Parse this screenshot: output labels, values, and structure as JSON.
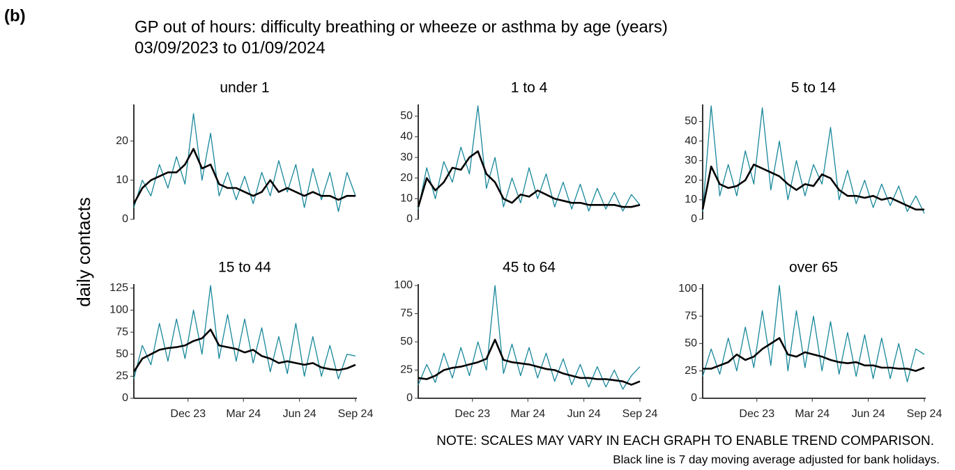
{
  "label": "(b)",
  "title": "GP out of hours: difficulty breathing or wheeze or asthma by age (years)",
  "subtitle": "03/09/2023 to 01/09/2024",
  "y_label": "daily contacts",
  "notes": [
    "NOTE: SCALES MAY VARY IN EACH GRAPH TO ENABLE TREND COMPARISON.",
    "Black line is 7 day moving average adjusted for bank holidays."
  ],
  "chart_data": [
    {
      "type": "line",
      "title": "under 1",
      "x": [
        "2023-09-03",
        "2023-09-17",
        "2023-10-01",
        "2023-10-15",
        "2023-10-29",
        "2023-11-12",
        "2023-11-26",
        "2023-12-10",
        "2023-12-24",
        "2024-01-07",
        "2024-01-21",
        "2024-02-04",
        "2024-02-18",
        "2024-03-03",
        "2024-03-17",
        "2024-03-31",
        "2024-04-14",
        "2024-04-28",
        "2024-05-12",
        "2024-05-26",
        "2024-06-09",
        "2024-06-23",
        "2024-07-07",
        "2024-07-21",
        "2024-08-04",
        "2024-08-18",
        "2024-09-01"
      ],
      "xlim": [
        "2023-09-03",
        "2024-09-01"
      ],
      "ylim": [
        0,
        29
      ],
      "yticks": [
        0,
        10,
        20
      ],
      "series": [
        {
          "color": "#17879a",
          "values": [
            3,
            10,
            6,
            14,
            8,
            16,
            9,
            27,
            10,
            22,
            6,
            12,
            5,
            11,
            4,
            12,
            6,
            15,
            7,
            14,
            3,
            13,
            5,
            12,
            2,
            12,
            6
          ]
        },
        {
          "color": "#000000",
          "values": [
            4,
            8,
            10,
            11,
            12,
            12,
            14,
            18,
            13,
            14,
            9,
            8,
            8,
            7,
            6,
            7,
            10,
            7,
            8,
            7,
            6,
            7,
            6,
            6,
            5,
            6,
            6
          ]
        }
      ]
    },
    {
      "type": "line",
      "title": "1 to 4",
      "x": [
        "2023-09-03",
        "2023-09-17",
        "2023-10-01",
        "2023-10-15",
        "2023-10-29",
        "2023-11-12",
        "2023-11-26",
        "2023-12-10",
        "2023-12-24",
        "2024-01-07",
        "2024-01-21",
        "2024-02-04",
        "2024-02-18",
        "2024-03-03",
        "2024-03-17",
        "2024-03-31",
        "2024-04-14",
        "2024-04-28",
        "2024-05-12",
        "2024-05-26",
        "2024-06-09",
        "2024-06-23",
        "2024-07-07",
        "2024-07-21",
        "2024-08-04",
        "2024-08-18",
        "2024-09-01"
      ],
      "xlim": [
        "2023-09-03",
        "2024-09-01"
      ],
      "ylim": [
        0,
        55
      ],
      "yticks": [
        0,
        10,
        20,
        30,
        40,
        50
      ],
      "series": [
        {
          "color": "#17879a",
          "values": [
            5,
            25,
            10,
            28,
            18,
            35,
            22,
            55,
            15,
            30,
            6,
            20,
            8,
            25,
            10,
            22,
            6,
            18,
            5,
            17,
            4,
            15,
            5,
            13,
            4,
            12,
            7
          ]
        },
        {
          "color": "#000000",
          "values": [
            6,
            20,
            14,
            18,
            25,
            24,
            30,
            33,
            22,
            18,
            10,
            8,
            12,
            11,
            14,
            12,
            10,
            9,
            8,
            8,
            7,
            7,
            7,
            7,
            6,
            6,
            7
          ]
        }
      ]
    },
    {
      "type": "line",
      "title": "5 to 14",
      "x": [
        "2023-09-03",
        "2023-09-17",
        "2023-10-01",
        "2023-10-15",
        "2023-10-29",
        "2023-11-12",
        "2023-11-26",
        "2023-12-10",
        "2023-12-24",
        "2024-01-07",
        "2024-01-21",
        "2024-02-04",
        "2024-02-18",
        "2024-03-03",
        "2024-03-17",
        "2024-03-31",
        "2024-04-14",
        "2024-04-28",
        "2024-05-12",
        "2024-05-26",
        "2024-06-09",
        "2024-06-23",
        "2024-07-07",
        "2024-07-21",
        "2024-08-04",
        "2024-08-18",
        "2024-09-01"
      ],
      "xlim": [
        "2023-09-03",
        "2024-09-01"
      ],
      "ylim": [
        0,
        58
      ],
      "yticks": [
        0,
        10,
        20,
        30,
        40,
        50
      ],
      "series": [
        {
          "color": "#17879a",
          "values": [
            4,
            58,
            12,
            28,
            12,
            35,
            18,
            57,
            15,
            40,
            10,
            30,
            12,
            28,
            18,
            47,
            10,
            25,
            8,
            20,
            6,
            18,
            7,
            17,
            4,
            12,
            3
          ]
        },
        {
          "color": "#000000",
          "values": [
            5,
            27,
            18,
            16,
            17,
            20,
            28,
            26,
            24,
            22,
            18,
            15,
            18,
            17,
            23,
            21,
            15,
            12,
            12,
            11,
            12,
            10,
            11,
            9,
            7,
            5,
            5
          ]
        }
      ]
    },
    {
      "type": "line",
      "title": "15 to 44",
      "x": [
        "2023-09-03",
        "2023-09-17",
        "2023-10-01",
        "2023-10-15",
        "2023-10-29",
        "2023-11-12",
        "2023-11-26",
        "2023-12-10",
        "2023-12-24",
        "2024-01-07",
        "2024-01-21",
        "2024-02-04",
        "2024-02-18",
        "2024-03-03",
        "2024-03-17",
        "2024-03-31",
        "2024-04-14",
        "2024-04-28",
        "2024-05-12",
        "2024-05-26",
        "2024-06-09",
        "2024-06-23",
        "2024-07-07",
        "2024-07-21",
        "2024-08-04",
        "2024-08-18",
        "2024-09-01"
      ],
      "xlim": [
        "2023-09-03",
        "2024-09-01"
      ],
      "xticks": [
        {
          "value": "2023-12-01",
          "label": "Dec 23"
        },
        {
          "value": "2024-03-01",
          "label": "Mar 24"
        },
        {
          "value": "2024-06-01",
          "label": "Jun 24"
        },
        {
          "value": "2024-09-01",
          "label": "Sep 24"
        }
      ],
      "ylim": [
        0,
        128
      ],
      "yticks": [
        0,
        25,
        50,
        75,
        100,
        125
      ],
      "series": [
        {
          "color": "#17879a",
          "values": [
            22,
            60,
            38,
            85,
            42,
            90,
            45,
            100,
            50,
            128,
            45,
            95,
            42,
            90,
            40,
            80,
            30,
            70,
            28,
            85,
            25,
            70,
            25,
            60,
            22,
            50,
            48
          ]
        },
        {
          "color": "#000000",
          "values": [
            30,
            45,
            50,
            55,
            57,
            58,
            60,
            65,
            68,
            78,
            60,
            58,
            56,
            52,
            55,
            48,
            45,
            40,
            42,
            40,
            38,
            40,
            35,
            33,
            32,
            34,
            38
          ]
        }
      ]
    },
    {
      "type": "line",
      "title": "45 to 64",
      "x": [
        "2023-09-03",
        "2023-09-17",
        "2023-10-01",
        "2023-10-15",
        "2023-10-29",
        "2023-11-12",
        "2023-11-26",
        "2023-12-10",
        "2023-12-24",
        "2024-01-07",
        "2024-01-21",
        "2024-02-04",
        "2024-02-18",
        "2024-03-03",
        "2024-03-17",
        "2024-03-31",
        "2024-04-14",
        "2024-04-28",
        "2024-05-12",
        "2024-05-26",
        "2024-06-09",
        "2024-06-23",
        "2024-07-07",
        "2024-07-21",
        "2024-08-04",
        "2024-08-18",
        "2024-09-01"
      ],
      "xlim": [
        "2023-09-03",
        "2024-09-01"
      ],
      "xticks": [
        {
          "value": "2023-12-01",
          "label": "Dec 23"
        },
        {
          "value": "2024-03-01",
          "label": "Mar 24"
        },
        {
          "value": "2024-06-01",
          "label": "Jun 24"
        },
        {
          "value": "2024-09-01",
          "label": "Sep 24"
        }
      ],
      "ylim": [
        0,
        100
      ],
      "yticks": [
        0,
        25,
        50,
        75,
        100
      ],
      "series": [
        {
          "color": "#17879a",
          "values": [
            12,
            30,
            14,
            40,
            18,
            45,
            20,
            50,
            25,
            100,
            22,
            48,
            20,
            45,
            18,
            40,
            15,
            35,
            12,
            30,
            10,
            28,
            10,
            25,
            8,
            20,
            28
          ]
        },
        {
          "color": "#000000",
          "values": [
            18,
            17,
            20,
            25,
            27,
            28,
            30,
            32,
            35,
            52,
            34,
            32,
            31,
            30,
            28,
            26,
            25,
            22,
            20,
            18,
            18,
            17,
            17,
            16,
            15,
            12,
            15
          ]
        }
      ]
    },
    {
      "type": "line",
      "title": "over 65",
      "x": [
        "2023-09-03",
        "2023-09-17",
        "2023-10-01",
        "2023-10-15",
        "2023-10-29",
        "2023-11-12",
        "2023-11-26",
        "2023-12-10",
        "2023-12-24",
        "2024-01-07",
        "2024-01-21",
        "2024-02-04",
        "2024-02-18",
        "2024-03-03",
        "2024-03-17",
        "2024-03-31",
        "2024-04-14",
        "2024-04-28",
        "2024-05-12",
        "2024-05-26",
        "2024-06-09",
        "2024-06-23",
        "2024-07-07",
        "2024-07-21",
        "2024-08-04",
        "2024-08-18",
        "2024-09-01"
      ],
      "xlim": [
        "2023-09-03",
        "2024-09-01"
      ],
      "xticks": [
        {
          "value": "2023-12-01",
          "label": "Dec 23"
        },
        {
          "value": "2024-03-01",
          "label": "Mar 24"
        },
        {
          "value": "2024-06-01",
          "label": "Jun 24"
        },
        {
          "value": "2024-09-01",
          "label": "Sep 24"
        }
      ],
      "ylim": [
        0,
        103
      ],
      "yticks": [
        0,
        25,
        50,
        75,
        100
      ],
      "series": [
        {
          "color": "#17879a",
          "values": [
            20,
            45,
            22,
            55,
            25,
            65,
            28,
            80,
            30,
            103,
            25,
            80,
            28,
            75,
            25,
            70,
            22,
            60,
            20,
            58,
            18,
            55,
            18,
            50,
            15,
            45,
            40
          ]
        },
        {
          "color": "#000000",
          "values": [
            27,
            27,
            30,
            33,
            40,
            35,
            38,
            45,
            50,
            55,
            40,
            38,
            42,
            40,
            38,
            35,
            33,
            32,
            33,
            30,
            30,
            28,
            28,
            27,
            27,
            25,
            28
          ]
        }
      ]
    }
  ]
}
